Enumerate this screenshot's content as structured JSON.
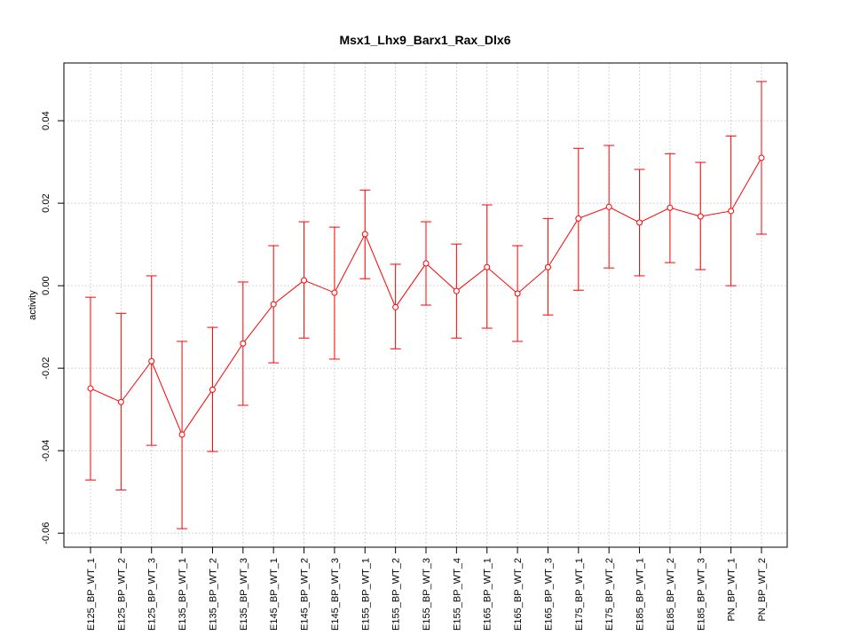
{
  "chart_data": {
    "type": "line",
    "title": "Msx1_Lhx9_Barx1_Rax_Dlx6",
    "xlabel": "",
    "ylabel": "activity",
    "ylim": [
      -0.0634,
      0.054
    ],
    "yticks": [
      -0.06,
      -0.04,
      -0.02,
      0.0,
      0.02,
      0.04
    ],
    "ytick_labels": [
      "-0.06",
      "-0.04",
      "-0.02",
      "0.00",
      "0.02",
      "0.04"
    ],
    "grid": true,
    "colors": {
      "series": "#ff0000",
      "grid": "#d3d3d3",
      "axis": "#000000"
    },
    "categories": [
      "E125_BP_WT_1",
      "E125_BP_WT_2",
      "E125_BP_WT_3",
      "E135_BP_WT_1",
      "E135_BP_WT_2",
      "E135_BP_WT_3",
      "E145_BP_WT_1",
      "E145_BP_WT_2",
      "E145_BP_WT_3",
      "E155_BP_WT_1",
      "E155_BP_WT_2",
      "E155_BP_WT_3",
      "E155_BP_WT_4",
      "E165_BP_WT_1",
      "E165_BP_WT_2",
      "E165_BP_WT_3",
      "E175_BP_WT_1",
      "E175_BP_WT_2",
      "E185_BP_WT_1",
      "E185_BP_WT_2",
      "E185_BP_WT_3",
      "PN_BP_WT_1",
      "PN_BP_WT_2"
    ],
    "values": [
      -0.0249,
      -0.0282,
      -0.0183,
      -0.0361,
      -0.0252,
      -0.014,
      -0.0045,
      0.0013,
      -0.0017,
      0.0125,
      -0.0052,
      0.0054,
      -0.0013,
      0.0045,
      -0.0019,
      0.0045,
      0.0163,
      0.0191,
      0.0153,
      0.0189,
      0.0168,
      0.0181,
      0.031
    ],
    "upper": [
      -0.0028,
      -0.0067,
      0.0024,
      -0.0135,
      -0.0101,
      0.0009,
      0.0097,
      0.0155,
      0.0142,
      0.0232,
      0.0052,
      0.0155,
      0.0101,
      0.0196,
      0.0097,
      0.0163,
      0.0333,
      0.034,
      0.0282,
      0.032,
      0.0299,
      0.0363,
      0.0495
    ],
    "lower": [
      -0.0471,
      -0.0495,
      -0.0387,
      -0.0589,
      -0.0402,
      -0.029,
      -0.0187,
      -0.0127,
      -0.0178,
      0.0017,
      -0.0153,
      -0.0047,
      -0.0127,
      -0.0103,
      -0.0135,
      -0.0071,
      -0.0011,
      0.0043,
      0.0024,
      0.0056,
      0.0039,
      0.0,
      0.0125
    ]
  }
}
